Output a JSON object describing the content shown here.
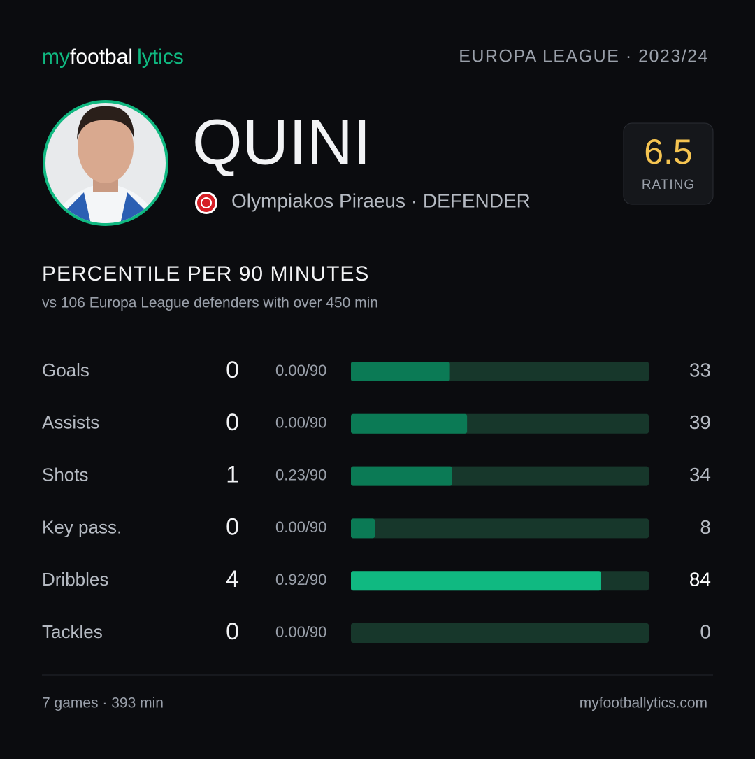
{
  "header": {
    "logo": [
      "my",
      "footbal",
      "lytics"
    ],
    "competition": "EUROPA LEAGUE · 2023/24"
  },
  "player": {
    "name": "QUINI",
    "club_line": "Olympiakos Piraeus · DEFENDER",
    "rating": "6.5",
    "rating_label": "RATING"
  },
  "section": {
    "title": "PERCENTILE PER 90 MINUTES",
    "subtitle": "vs 106 Europa League defenders with over 450 min",
    "xlim": [
      0,
      100
    ]
  },
  "rows": [
    {
      "label": "Goals",
      "total": "0",
      "per90": "0.00/90",
      "percentile": 33,
      "color": "#0b7a55"
    },
    {
      "label": "Assists",
      "total": "0",
      "per90": "0.00/90",
      "percentile": 39,
      "color": "#0b7a55"
    },
    {
      "label": "Shots",
      "total": "1",
      "per90": "0.23/90",
      "percentile": 34,
      "color": "#0b7a55"
    },
    {
      "label": "Key pass.",
      "total": "0",
      "per90": "0.00/90",
      "percentile": 8,
      "color": "#0b7a55"
    },
    {
      "label": "Dribbles",
      "total": "4",
      "per90": "0.92/90",
      "percentile": 84,
      "color": "#10b981"
    },
    {
      "label": "Tackles",
      "total": "0",
      "per90": "0.00/90",
      "percentile": 0,
      "color": "#0b7a55"
    }
  ],
  "footer": {
    "left": "7 games · 393 min",
    "right": "myfootballytics.com"
  }
}
